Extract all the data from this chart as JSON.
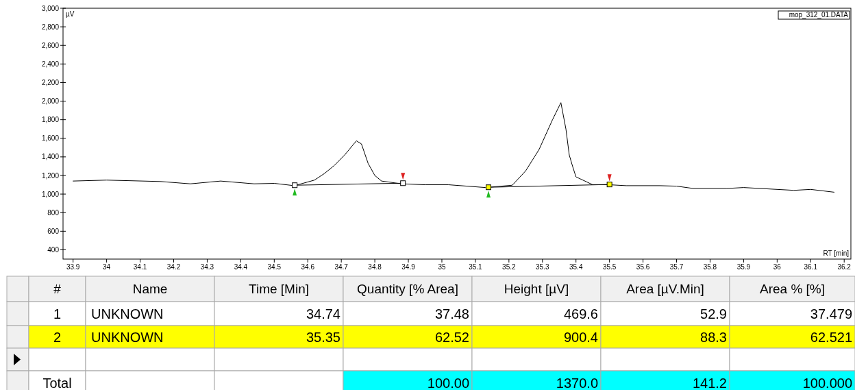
{
  "chart_data": {
    "type": "line",
    "xlabel": "RT [min]",
    "ylabel": "µV",
    "xlim": [
      33.87,
      36.22
    ],
    "ylim": [
      300,
      3000
    ],
    "xticks": [
      33.9,
      34,
      34.1,
      34.2,
      34.3,
      34.4,
      34.5,
      34.6,
      34.7,
      34.8,
      34.9,
      35,
      35.1,
      35.2,
      35.3,
      35.4,
      35.5,
      35.6,
      35.7,
      35.8,
      35.9,
      36,
      36.1,
      36.2
    ],
    "yticks": [
      400,
      600,
      800,
      {
        "value": 1000,
        "label": "1,000"
      },
      {
        "value": 1200,
        "label": "1,200"
      },
      {
        "value": 1400,
        "label": "1,400"
      },
      {
        "value": 1600,
        "label": "1,600"
      },
      {
        "value": 1800,
        "label": "1,800"
      },
      {
        "value": 2000,
        "label": "2,000"
      },
      {
        "value": 2200,
        "label": "2,200"
      },
      {
        "value": 2400,
        "label": "2,400"
      },
      {
        "value": 2600,
        "label": "2,600"
      },
      {
        "value": 2800,
        "label": "2,800"
      },
      {
        "value": 3000,
        "label": "3,000"
      }
    ],
    "grid": false,
    "series": [
      {
        "color": "#000000",
        "marker": "none",
        "x": [
          33.9,
          34,
          34.16,
          34.25,
          34.34,
          34.44,
          34.5,
          34.56,
          34.62,
          34.65,
          34.68,
          34.71,
          34.745,
          34.76,
          34.78,
          34.8,
          34.82,
          34.88,
          34.95,
          35.02,
          35.13,
          35.21,
          35.25,
          35.29,
          35.33,
          35.355,
          35.37,
          35.38,
          35.39,
          35.4,
          35.45,
          35.5,
          35.55,
          35.65,
          35.7,
          35.75,
          35.85,
          35.9,
          36.05,
          36.1,
          36.17
        ],
        "values": [
          1140,
          1150,
          1135,
          1110,
          1140,
          1110,
          1115,
          1090,
          1150,
          1222,
          1310,
          1420,
          1573,
          1540,
          1330,
          1200,
          1140,
          1110,
          1100,
          1100,
          1070,
          1095,
          1250,
          1480,
          1800,
          1984,
          1700,
          1420,
          1297,
          1185,
          1100,
          1100,
          1090,
          1090,
          1085,
          1060,
          1060,
          1070,
          1040,
          1050,
          1020
        ]
      },
      {
        "color": "#000000",
        "marker": "square",
        "x": [
          34.561,
          34.884
        ],
        "values": [
          1095,
          1117
        ]
      },
      {
        "color": "#000000",
        "marker": "square",
        "x": [
          35.139,
          35.5
        ],
        "values": [
          1073,
          1103
        ]
      }
    ],
    "annotations": [
      "mop_312_01.DATA",
      "#",
      "Name",
      "Time [Min]",
      "Quantity [% Area]",
      "Height [µV]",
      "Area [µV.Min]",
      "Area % [%]",
      "1",
      "UNKNOWN",
      "34.74",
      "37.48",
      "469.6",
      "52.9",
      "37.479",
      "2",
      "UNKNOWN",
      "35.35",
      "62.52",
      "900.4",
      "88.3",
      "62.521",
      "Total",
      null,
      null,
      "100.00",
      "1370.0",
      "141.2",
      "100.000"
    ]
  }
}
